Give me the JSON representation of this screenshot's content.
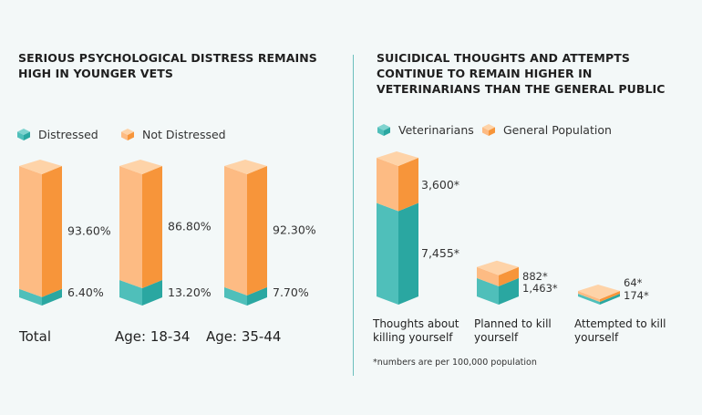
{
  "colors": {
    "teal_front": "#4fbfba",
    "teal_side": "#2aa7a1",
    "teal_top": "#7fd3cf",
    "orange_front": "#fdbb83",
    "orange_side": "#f7953a",
    "orange_top": "#fed3a8",
    "divider": "#6cc0bd"
  },
  "chart_data": [
    {
      "type": "bar",
      "title": "SERIOUS PSYCHOLOGICAL DISTRESS REMAINS HIGH IN YOUNGER VETS",
      "legend": [
        "Distressed",
        "Not Distressed"
      ],
      "legend_placement": "top-left",
      "categories": [
        "Total",
        "Age: 18-34",
        "Age: 35-44"
      ],
      "series": [
        {
          "name": "Distressed",
          "values": [
            6.4,
            13.2,
            7.7
          ],
          "labels": [
            "6.40%",
            "13.20%",
            "7.70%"
          ]
        },
        {
          "name": "Not Distressed",
          "values": [
            93.6,
            86.8,
            92.3
          ],
          "labels": [
            "93.60%",
            "86.80%",
            "92.30%"
          ]
        }
      ],
      "stacked": true,
      "ylim": [
        0,
        100
      ]
    },
    {
      "type": "bar",
      "title": "SUICIDICAL THOUGHTS AND ATTEMPTS CONTINUE TO REMAIN HIGHER IN VETERINARIANS THAN THE GENERAL PUBLIC",
      "legend": [
        "Veterinarians",
        "General Population"
      ],
      "legend_placement": "top-left",
      "categories": [
        "Thoughts about killing yourself",
        "Planned to kill yourself",
        "Attempted to kill yourself"
      ],
      "series": [
        {
          "name": "Veterinarians",
          "values": [
            7455,
            1463,
            174
          ],
          "labels": [
            "7,455*",
            "1,463*",
            "174*"
          ]
        },
        {
          "name": "General Population",
          "values": [
            3600,
            882,
            64
          ],
          "labels": [
            "3,600*",
            "882*",
            "64*"
          ]
        }
      ],
      "stacked": true,
      "footnote": "*numbers are per 100,000 population"
    }
  ]
}
